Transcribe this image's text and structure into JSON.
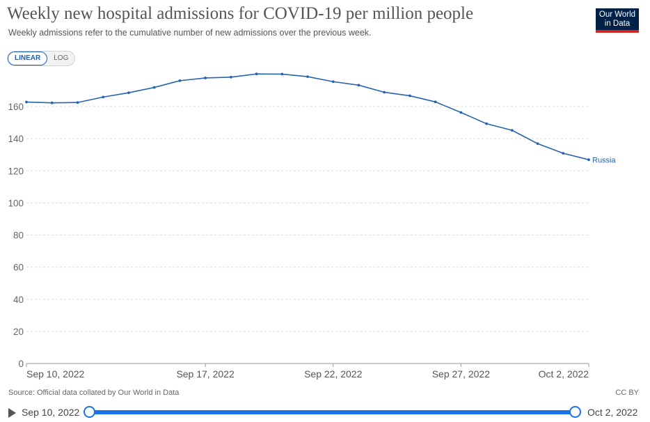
{
  "header": {
    "title": "Weekly new hospital admissions for COVID-19 per million people",
    "subtitle": "Weekly admissions refer to the cumulative number of new admissions over the previous week.",
    "logo_line1": "Our World",
    "logo_line2": "in Data"
  },
  "scale_toggle": {
    "linear_label": "LINEAR",
    "log_label": "LOG",
    "selected": "LINEAR"
  },
  "chart_data": {
    "type": "line",
    "title": "Weekly new hospital admissions for COVID-19 per million people",
    "xlabel": "",
    "ylabel": "",
    "ylim": [
      0,
      175
    ],
    "yticks": [
      0,
      20,
      40,
      60,
      80,
      100,
      120,
      140,
      160
    ],
    "xticks": [
      "Sep 10, 2022",
      "Sep 17, 2022",
      "Sep 22, 2022",
      "Sep 27, 2022",
      "Oct 2, 2022"
    ],
    "grid": "horizontal dashed",
    "line_color": "#2563b0",
    "series": [
      {
        "name": "Russia",
        "x": [
          "2022-09-10",
          "2022-09-11",
          "2022-09-12",
          "2022-09-13",
          "2022-09-14",
          "2022-09-15",
          "2022-09-16",
          "2022-09-17",
          "2022-09-18",
          "2022-09-19",
          "2022-09-20",
          "2022-09-21",
          "2022-09-22",
          "2022-09-23",
          "2022-09-24",
          "2022-09-25",
          "2022-09-26",
          "2022-09-27",
          "2022-09-28",
          "2022-09-29",
          "2022-09-30",
          "2022-10-01",
          "2022-10-02"
        ],
        "values": [
          162.8,
          162.3,
          162.5,
          165.9,
          168.6,
          171.9,
          176.1,
          177.8,
          178.3,
          180.3,
          180.2,
          178.6,
          175.5,
          173.3,
          168.9,
          166.7,
          162.9,
          156.3,
          149.3,
          145.2,
          136.9,
          130.9,
          126.9
        ]
      }
    ]
  },
  "footer": {
    "source": "Source: Official data collated by Our World in Data",
    "license": "CC BY"
  },
  "timeline": {
    "start_label": "Sep 10, 2022",
    "end_label": "Oct 2, 2022"
  }
}
